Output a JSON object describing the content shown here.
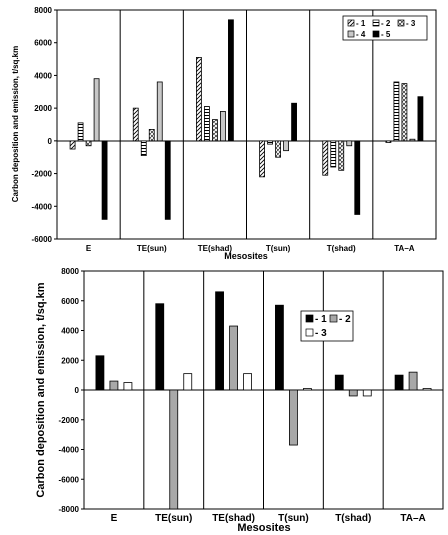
{
  "chart_data": [
    {
      "type": "bar",
      "xlabel": "Mesosites",
      "ylabel": "Carbon deposition and emission, t/sq.km",
      "ylim": [
        -6000,
        8000
      ],
      "yticks": [
        -6000,
        -4000,
        -2000,
        0,
        2000,
        4000,
        6000,
        8000
      ],
      "categories": [
        "E",
        "TE(sun)",
        "TE(shad)",
        "T(sun)",
        "T(shad)",
        "TA–A"
      ],
      "legend": {
        "position": "top-right",
        "labels": [
          "1",
          "2",
          "3",
          "4",
          "5"
        ]
      },
      "grid": false,
      "series": [
        {
          "name": "1",
          "pattern": "hatch-diagonal",
          "values": [
            -500,
            2000,
            5100,
            -2200,
            -2100,
            -100
          ]
        },
        {
          "name": "2",
          "pattern": "hatch-horizontal",
          "values": [
            1100,
            -900,
            2100,
            -200,
            -1600,
            3600
          ]
        },
        {
          "name": "3",
          "pattern": "hatch-cross",
          "values": [
            -300,
            700,
            1300,
            -1000,
            -1800,
            3500
          ]
        },
        {
          "name": "4",
          "pattern": "light-gray",
          "values": [
            3800,
            3600,
            1800,
            -600,
            -300,
            100
          ]
        },
        {
          "name": "5",
          "pattern": "black",
          "values": [
            -4800,
            -4800,
            7400,
            2300,
            -4500,
            2700
          ]
        }
      ]
    },
    {
      "type": "bar",
      "xlabel": "Mesosites",
      "ylabel": "Carbon deposition and emission, t/sq.km",
      "ylim": [
        -8000,
        8000
      ],
      "yticks": [
        -8000,
        -6000,
        -4000,
        -2000,
        0,
        2000,
        4000,
        6000,
        8000
      ],
      "categories": [
        "E",
        "TE(sun)",
        "TE(shad)",
        "T(sun)",
        "T(shad)",
        "TA–A"
      ],
      "legend": {
        "position": "top-right",
        "labels": [
          "1",
          "2",
          "3"
        ]
      },
      "grid": false,
      "series": [
        {
          "name": "1",
          "pattern": "black",
          "values": [
            2300,
            5800,
            6600,
            5700,
            1000,
            1000
          ]
        },
        {
          "name": "2",
          "pattern": "gray",
          "values": [
            600,
            -8000,
            4300,
            -3700,
            -400,
            1200
          ]
        },
        {
          "name": "3",
          "pattern": "white",
          "values": [
            500,
            1100,
            1100,
            100,
            -400,
            100
          ]
        }
      ]
    }
  ]
}
